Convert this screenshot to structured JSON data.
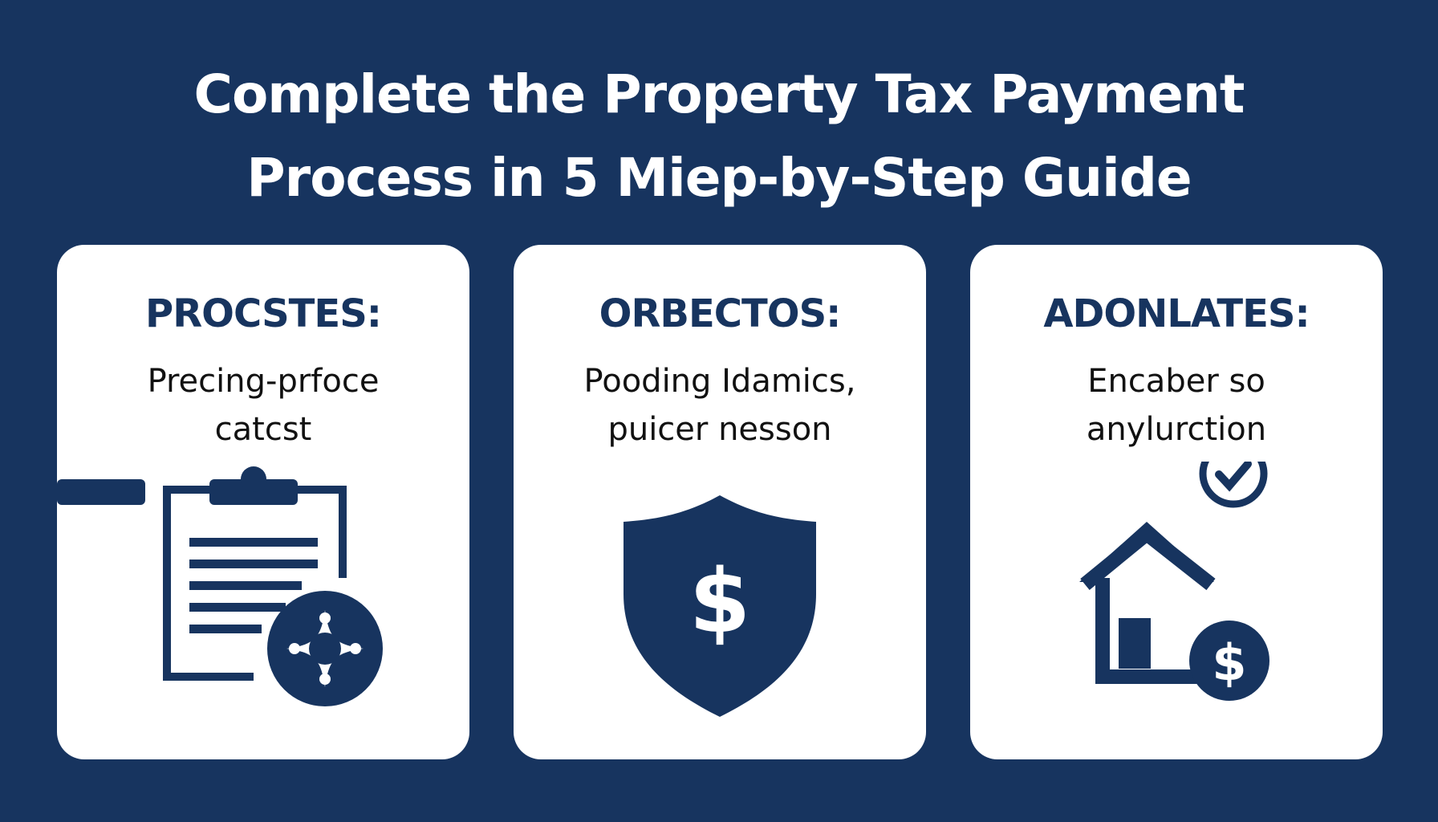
{
  "title": {
    "line1": "Complete the Property Tax Payment",
    "line2": "Process in 5 Miep-by-Step Guide"
  },
  "cards": [
    {
      "heading": "PROCSTES:",
      "lines": [
        "Precing-prfoce",
        "catcst"
      ],
      "icon": "clipboard-with-sparkle-icon"
    },
    {
      "heading": "ORBECTOS:",
      "lines": [
        "Pooding Idamics,",
        "puicer nesson"
      ],
      "icon": "shield-dollar-icon"
    },
    {
      "heading": "ADONLATES:",
      "lines": [
        "Encaber so",
        "anylurction"
      ],
      "icon": "house-check-dollar-icon"
    }
  ],
  "colors": {
    "background": "#17345f",
    "card": "#ffffff",
    "accent": "#17345f"
  }
}
